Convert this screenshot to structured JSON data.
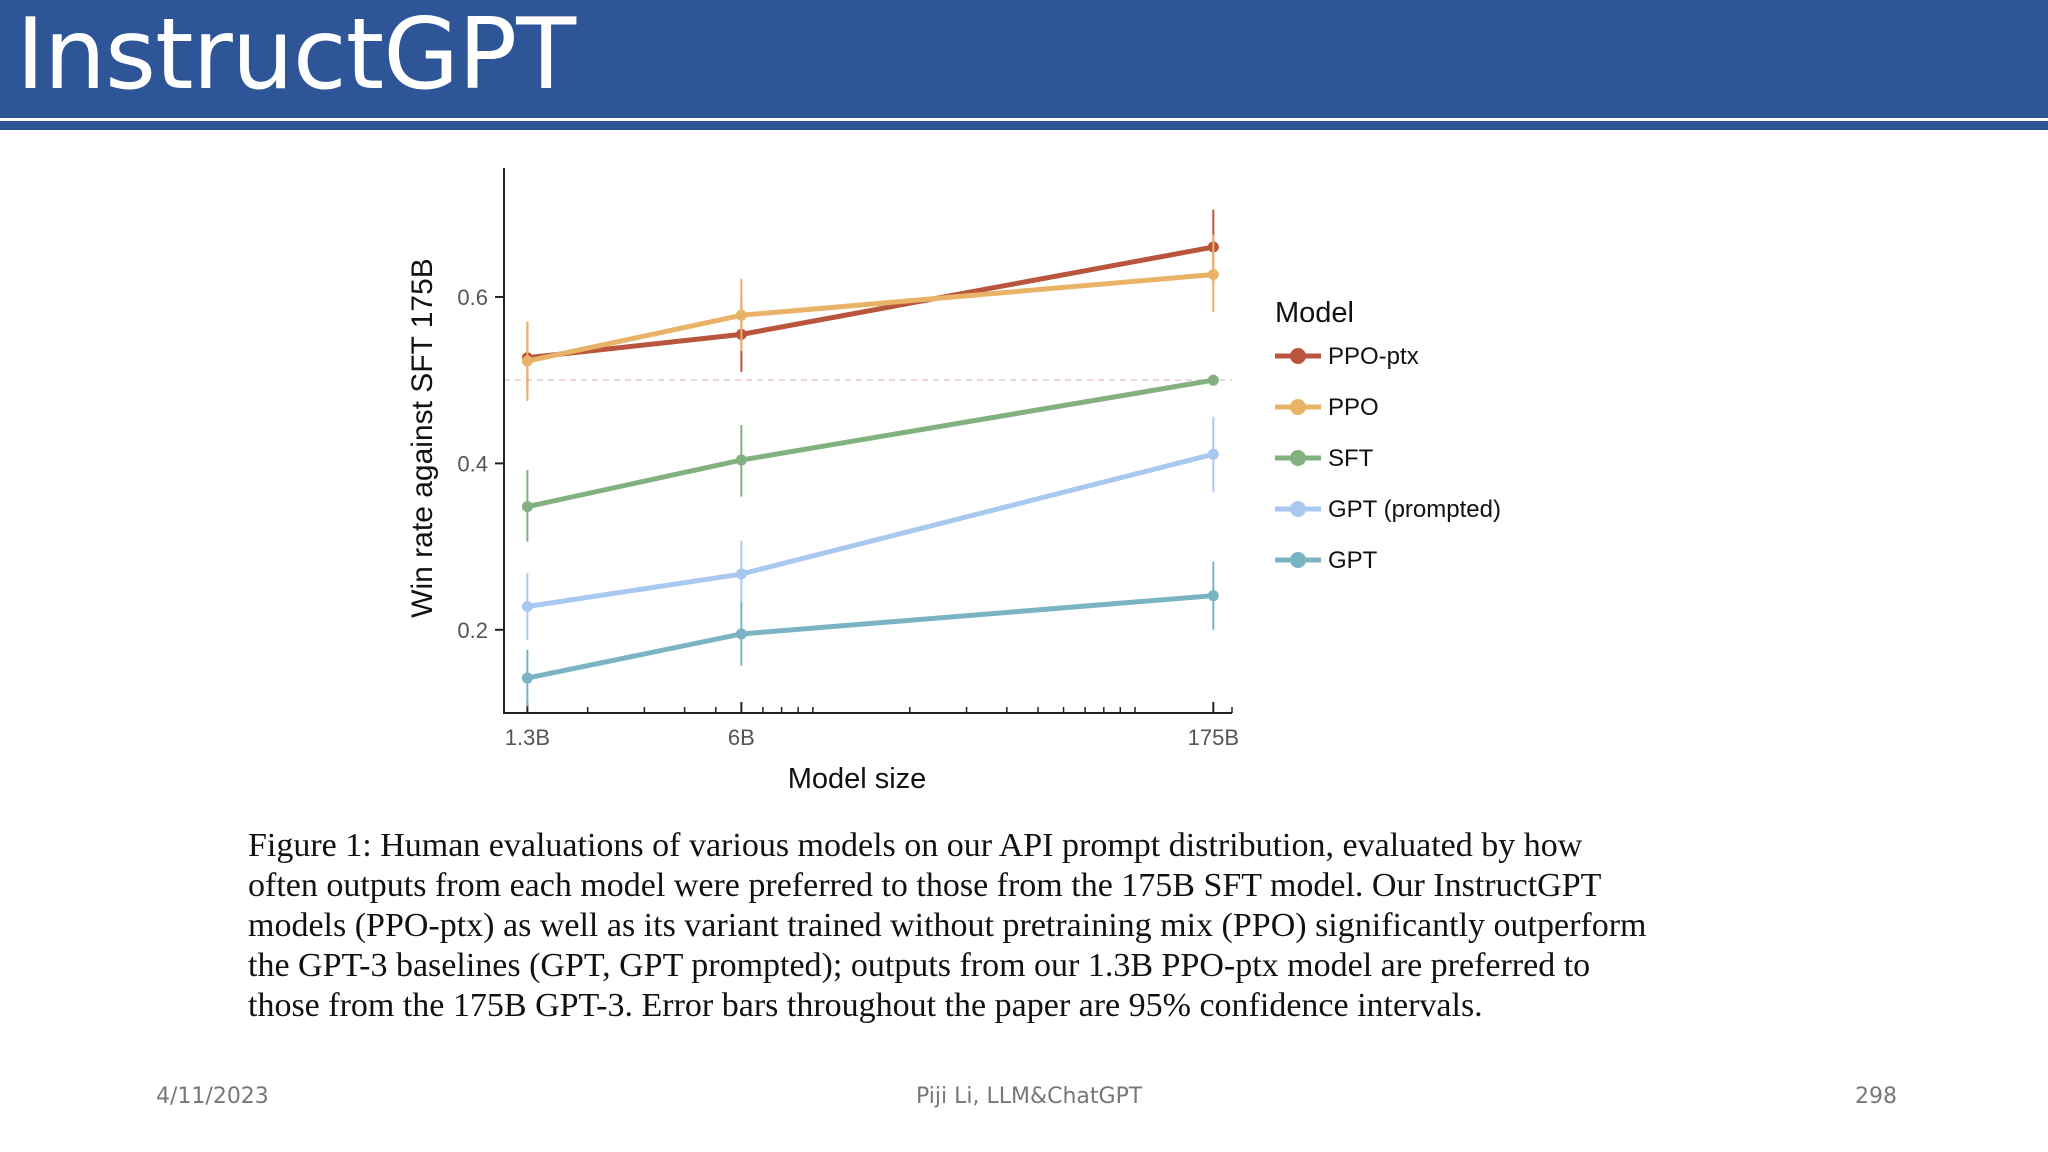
{
  "slide": {
    "title": "InstructGPT",
    "footer": {
      "date": "4/11/2023",
      "center": "Piji Li, LLM&ChatGPT",
      "page": "298"
    },
    "caption_lines": [
      "Figure 1: Human evaluations of various models on our API prompt distribution, evaluated by how",
      "often outputs from each model were preferred to those from the 175B SFT model. Our InstructGPT",
      "models (PPO-ptx) as well as its variant trained without pretraining mix (PPO) significantly outperform",
      "the GPT-3 baselines (GPT, GPT prompted); outputs from our 1.3B PPO-ptx model are preferred to",
      "those from the 175B GPT-3. Error bars throughout the paper are 95% confidence intervals."
    ]
  },
  "chart_data": {
    "type": "line",
    "xlabel": "Model size",
    "ylabel": "Win rate against SFT 175B",
    "x_scale": "log",
    "x": [
      1.3,
      6,
      175
    ],
    "x_tick_labels": [
      "1.3B",
      "6B",
      "175B"
    ],
    "xlim": [
      1.1,
      200
    ],
    "yticks": [
      0.2,
      0.4,
      0.6
    ],
    "ylim": [
      0.1,
      0.755
    ],
    "reference_line": 0.5,
    "legend_title": "Model",
    "legend_position": "right",
    "series": [
      {
        "name": "PPO-ptx",
        "color": "#b9543d",
        "values": [
          0.527,
          0.555,
          0.66
        ],
        "err_low": [
          0.485,
          0.51,
          0.615
        ],
        "err_high": [
          0.57,
          0.6,
          0.705
        ]
      },
      {
        "name": "PPO",
        "color": "#e8b366",
        "values": [
          0.523,
          0.578,
          0.627
        ],
        "err_low": [
          0.475,
          0.535,
          0.582
        ],
        "err_high": [
          0.57,
          0.622,
          0.675
        ]
      },
      {
        "name": "SFT",
        "color": "#82b07e",
        "values": [
          0.348,
          0.404,
          0.5
        ],
        "err_low": [
          0.306,
          0.36,
          0.5
        ],
        "err_high": [
          0.392,
          0.446,
          0.5
        ]
      },
      {
        "name": "GPT (prompted)",
        "color": "#a9c8f0",
        "values": [
          0.228,
          0.267,
          0.411
        ],
        "err_low": [
          0.188,
          0.227,
          0.366
        ],
        "err_high": [
          0.268,
          0.307,
          0.456
        ]
      },
      {
        "name": "GPT",
        "color": "#7ab4c2",
        "values": [
          0.142,
          0.195,
          0.241
        ],
        "err_low": [
          0.108,
          0.157,
          0.2
        ],
        "err_high": [
          0.176,
          0.233,
          0.282
        ]
      }
    ]
  }
}
